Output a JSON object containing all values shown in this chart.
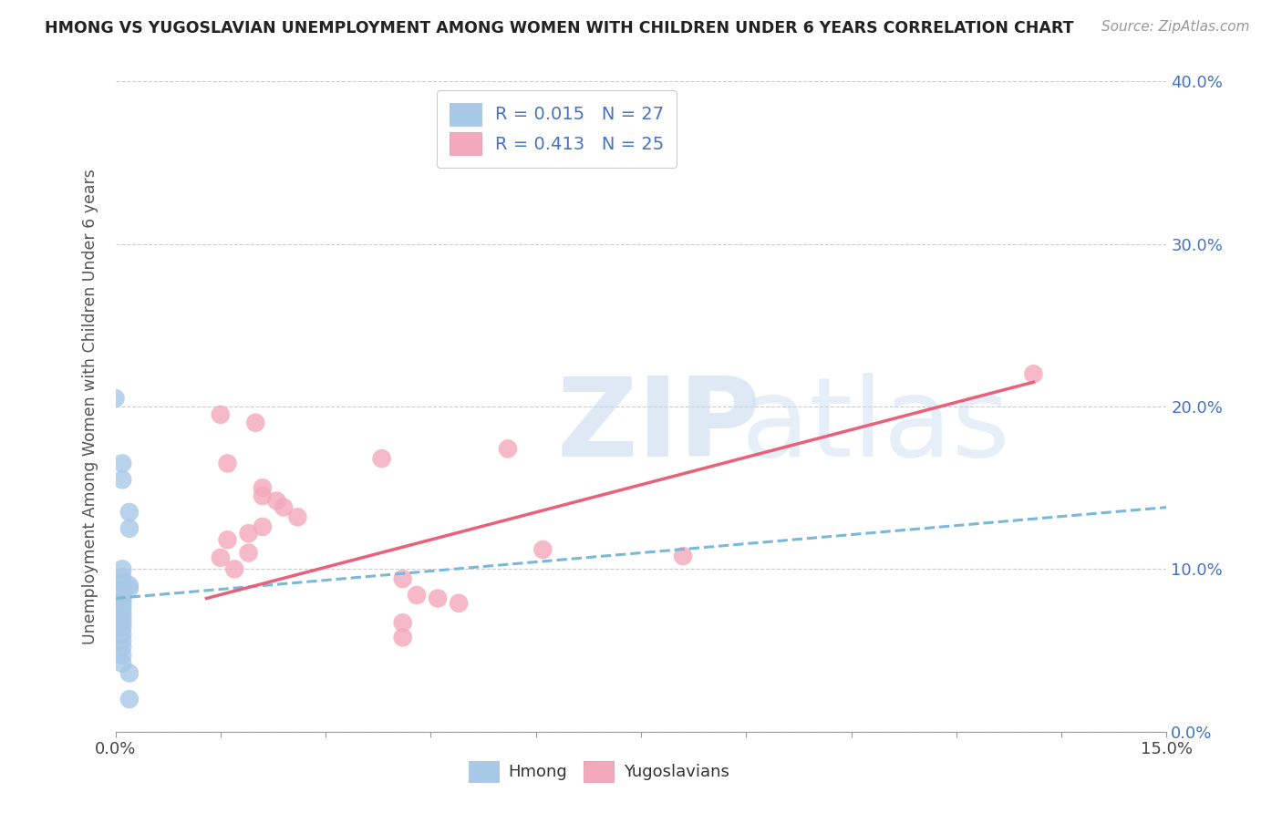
{
  "title": "HMONG VS YUGOSLAVIAN UNEMPLOYMENT AMONG WOMEN WITH CHILDREN UNDER 6 YEARS CORRELATION CHART",
  "source": "Source: ZipAtlas.com",
  "ylabel": "Unemployment Among Women with Children Under 6 years",
  "xlim": [
    0.0,
    0.15
  ],
  "ylim": [
    -0.02,
    0.42
  ],
  "plot_ylim": [
    0.0,
    0.4
  ],
  "xticks": [
    0.0,
    0.015,
    0.03,
    0.045,
    0.06,
    0.075,
    0.09,
    0.105,
    0.12,
    0.135,
    0.15
  ],
  "xtick_labels_show": [
    0.0,
    0.15
  ],
  "yticks": [
    0.0,
    0.1,
    0.2,
    0.3,
    0.4
  ],
  "hmong_R": "0.015",
  "hmong_N": "27",
  "yugo_R": "0.413",
  "yugo_N": "25",
  "hmong_color": "#a8c8e8",
  "yugo_color": "#f4a8bc",
  "trend_hmong_color": "#7ab8d8",
  "trend_yugo_color": "#e8607a",
  "background_color": "#ffffff",
  "hmong_scatter": [
    [
      0.0,
      0.205
    ],
    [
      0.001,
      0.165
    ],
    [
      0.001,
      0.155
    ],
    [
      0.002,
      0.135
    ],
    [
      0.002,
      0.125
    ],
    [
      0.001,
      0.1
    ],
    [
      0.001,
      0.095
    ],
    [
      0.001,
      0.092
    ],
    [
      0.002,
      0.09
    ],
    [
      0.002,
      0.088
    ],
    [
      0.001,
      0.086
    ],
    [
      0.001,
      0.084
    ],
    [
      0.001,
      0.082
    ],
    [
      0.001,
      0.08
    ],
    [
      0.001,
      0.078
    ],
    [
      0.001,
      0.076
    ],
    [
      0.001,
      0.073
    ],
    [
      0.001,
      0.07
    ],
    [
      0.001,
      0.067
    ],
    [
      0.001,
      0.064
    ],
    [
      0.001,
      0.06
    ],
    [
      0.001,
      0.056
    ],
    [
      0.001,
      0.052
    ],
    [
      0.001,
      0.047
    ],
    [
      0.001,
      0.042
    ],
    [
      0.002,
      0.036
    ],
    [
      0.002,
      0.02
    ]
  ],
  "yugo_scatter": [
    [
      0.015,
      0.195
    ],
    [
      0.02,
      0.19
    ],
    [
      0.016,
      0.165
    ],
    [
      0.021,
      0.15
    ],
    [
      0.021,
      0.145
    ],
    [
      0.023,
      0.142
    ],
    [
      0.024,
      0.138
    ],
    [
      0.026,
      0.132
    ],
    [
      0.021,
      0.126
    ],
    [
      0.019,
      0.122
    ],
    [
      0.016,
      0.118
    ],
    [
      0.019,
      0.11
    ],
    [
      0.015,
      0.107
    ],
    [
      0.017,
      0.1
    ],
    [
      0.038,
      0.168
    ],
    [
      0.041,
      0.094
    ],
    [
      0.043,
      0.084
    ],
    [
      0.046,
      0.082
    ],
    [
      0.049,
      0.079
    ],
    [
      0.041,
      0.067
    ],
    [
      0.041,
      0.058
    ],
    [
      0.056,
      0.174
    ],
    [
      0.061,
      0.112
    ],
    [
      0.081,
      0.108
    ],
    [
      0.131,
      0.22
    ]
  ],
  "hmong_trend_x": [
    0.0,
    0.15
  ],
  "hmong_trend_y": [
    0.082,
    0.138
  ],
  "yugo_trend_x": [
    0.013,
    0.131
  ],
  "yugo_trend_y": [
    0.082,
    0.215
  ]
}
